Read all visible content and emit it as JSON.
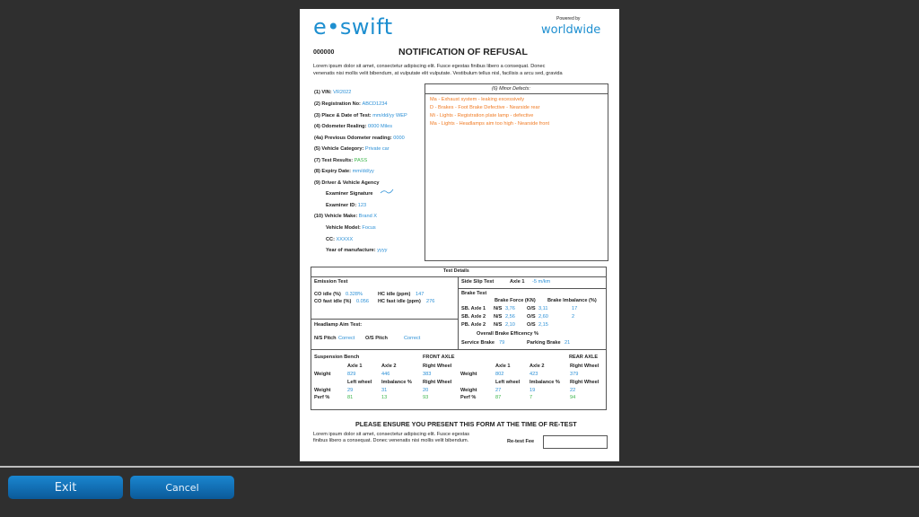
{
  "header": {
    "logo": "e•swift",
    "powered_by": "Powered by",
    "partner_logo": "worldwide",
    "doc_number": "000000",
    "title": "NOTIFICATION OF REFUSAL",
    "intro": [
      "Lorem ipsum dolor sit amet, consectetur adipiscing elit. Fusce egestas finibus libero a consequat. Donec",
      "venenatis nisi mollis velit bibendum, at vulputate elit vulputate. Vestibulum tellus nisl, facilisis a arcu sed, gravida"
    ]
  },
  "fields": [
    {
      "label": "(1) VIN:",
      "value": "VR2022"
    },
    {
      "label": "(2) Registration No:",
      "value": "ABCD1234"
    },
    {
      "label": "(3) Place & Date of Test:",
      "value": "mm/dd/yy WEP"
    },
    {
      "label": "(4) Odometer Realing:",
      "value": "0000 Miles"
    },
    {
      "label": "(4a) Previous Odometer reading:",
      "value": "0000"
    },
    {
      "label": "(5) Vehicle Category:",
      "value": "Private car"
    },
    {
      "label": "(7) Test Results:",
      "value": "PASS"
    },
    {
      "label": "(8) Expiry Date:",
      "value": "mm/dd/yy"
    },
    {
      "label": "(9) Driver & Vehicle Agency",
      "value": ""
    },
    {
      "label": "Examiner Signature",
      "value": ""
    },
    {
      "label": "Examiner ID:",
      "value": "123"
    },
    {
      "label": "(10) Vehicle Make:",
      "value": "Brand X"
    },
    {
      "label": "Vehicle Model:",
      "value": "Focus"
    },
    {
      "label": "CC:",
      "value": "XXXXX"
    },
    {
      "label": "Year of manufacture:",
      "value": "yyyy"
    }
  ],
  "defects": {
    "title": "(6) Minor Defects:",
    "items": [
      "Ma - Exhaust system - leaking excessively",
      "D - Brakes - Foot Brake Defective - Nearside rear",
      "Mi - Lights - Registration plate lamp - defective",
      "Ma - Lights - Headlamps aim too high - Nearside front"
    ]
  },
  "test": {
    "title": "Test Details",
    "emission": {
      "title": "Emission Test",
      "co_idle_label": "CO idle (%)",
      "co_idle": "0.328%",
      "hc_idle_label": "HC idle (ppm)",
      "hc_idle": "147",
      "co_fast_label": "CO fast idle (%)",
      "co_fast": "0.056",
      "hc_fast_label": "HC fast idle (ppm)",
      "hc_fast": "276"
    },
    "headlamp": {
      "title": "Headlamp Aim Test:",
      "ns_label": "N/S Pitch",
      "ns": "Correct",
      "os_label": "O/S Pitch",
      "os": "Correct"
    },
    "side_slip": {
      "title": "Side Slip Test",
      "axle_label": "Axle 1",
      "value": "-5 m/km"
    },
    "brake": {
      "title": "Brake Test",
      "force_header": "Brake Force (KN)",
      "imbalance_header": "Brake Imbalance (%)",
      "rows": [
        {
          "label": "SB. Axle 1",
          "ns": "3,76",
          "os": "3,11",
          "imb": "17"
        },
        {
          "label": "SB. Axle 2",
          "ns": "2,56",
          "os": "2,60",
          "imb": "2"
        },
        {
          "label": "PB. Axle 2",
          "ns": "2,10",
          "os": "2,15",
          "imb": ""
        }
      ],
      "ns_label": "N/S",
      "os_label": "O/S",
      "overall": "Overall Brake Efficency %",
      "service_label": "Service Brake",
      "service": "79",
      "parking_label": "Parking Brake",
      "parking": "21"
    },
    "suspension": {
      "title": "Suspension Bench",
      "weight": "Weight",
      "perf": "Perf %",
      "front": {
        "title": "FRONT AXLE",
        "h1": [
          "Axle 1",
          "Axle 2",
          "Right Wheel"
        ],
        "w1": [
          "829",
          "446",
          "383"
        ],
        "h2": [
          "Left wheel",
          "Imbalance %",
          "Right Wheel"
        ],
        "w2": [
          "29",
          "31",
          "20"
        ],
        "perf": [
          "81",
          "13",
          "93"
        ]
      },
      "rear": {
        "title": "REAR AXLE",
        "h1": [
          "Axle 1",
          "Axle 2",
          "Right Wheel"
        ],
        "w1": [
          "802",
          "423",
          "379"
        ],
        "h2": [
          "Left wheel",
          "Imbalance %",
          "Right Wheel"
        ],
        "w2": [
          "27",
          "19",
          "22"
        ],
        "perf": [
          "87",
          "7",
          "94"
        ]
      }
    }
  },
  "footer": {
    "notice": "PLEASE ENSURE YOU PRESENT THIS FORM AT THE TIME OF RE-TEST",
    "text": [
      "Lorem ipsum dolor sit amet, consectetur adipiscing elit. Fusce egestas",
      "finibus libero a consequat. Donec venenatis nisi mollis velit bibendum."
    ],
    "fee_label": "Re-test Fee",
    "fee_value": ""
  },
  "buttons": {
    "exit": "Exit",
    "cancel": "Cancel"
  },
  "colors": {
    "accent": "#1e8fd0",
    "defect": "#f07a22",
    "pass": "#3bb54a",
    "button": "#0b6fb8"
  }
}
